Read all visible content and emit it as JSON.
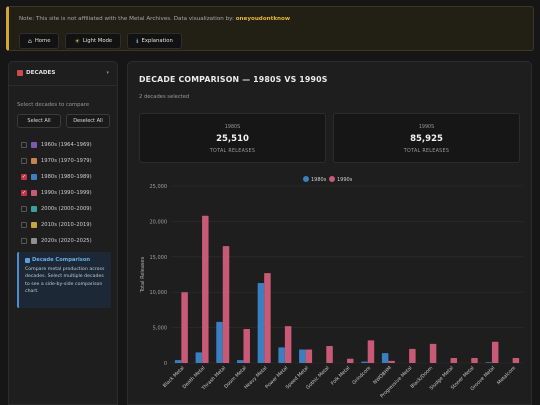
{
  "notice": {
    "text": "Note: This site is not affiliated with the Metal Archives. Data visualization by:",
    "author": "oneyoudontknow"
  },
  "nav": [
    {
      "icon": "home-icon",
      "label": "Home"
    },
    {
      "icon": "sun-icon",
      "label": "Light Mode"
    },
    {
      "icon": "info-icon",
      "label": "Explanation"
    }
  ],
  "sidebar": {
    "title": "DECADES",
    "select_label": "Select decades to compare",
    "select_all": "Select All",
    "deselect_all": "Deselect All",
    "decades": [
      {
        "label": "1960s (1964–1969)",
        "checked": false,
        "color": "#7a5ab0"
      },
      {
        "label": "1970s (1970–1979)",
        "checked": false,
        "color": "#c4844a"
      },
      {
        "label": "1980s (1980–1989)",
        "checked": true,
        "color": "#3a7fc0"
      },
      {
        "label": "1990s (1990–1999)",
        "checked": true,
        "color": "#c85a78"
      },
      {
        "label": "2000s (2000–2009)",
        "checked": false,
        "color": "#3aa0a0"
      },
      {
        "label": "2010s (2010–2019)",
        "checked": false,
        "color": "#c8a43a"
      },
      {
        "label": "2020s (2020–2025)",
        "checked": false,
        "color": "#909090"
      }
    ],
    "info_title": "Decade Comparison",
    "info_body": "Compare metal production across decades. Select multiple decades to see a side-by-side comparison chart."
  },
  "main": {
    "title": "DECADE COMPARISON — 1980S VS 1990S",
    "subtitle": "2 decades selected",
    "stats": [
      {
        "label": "1980S",
        "value": "25,510",
        "sub": "TOTAL RELEASES"
      },
      {
        "label": "1990S",
        "value": "85,925",
        "sub": "TOTAL RELEASES"
      }
    ]
  },
  "chart_data": {
    "type": "bar",
    "ylabel": "Total Releases",
    "ylim": [
      0,
      25000
    ],
    "yticks": [
      "0",
      "5,000",
      "10,000",
      "15,000",
      "20,000",
      "25,000"
    ],
    "categories": [
      "Black Metal",
      "Death Metal",
      "Thrash Metal",
      "Doom Metal",
      "Heavy Metal",
      "Power Metal",
      "Speed Metal",
      "Gothic Metal",
      "Folk Metal",
      "Grindcore",
      "NWOBHM",
      "Progressive Metal",
      "Black/Doom",
      "Sludge Metal",
      "Stoner Metal",
      "Groove Metal",
      "Metalcore"
    ],
    "series": [
      {
        "name": "1980s",
        "color": "#3a7fc0",
        "values": [
          400,
          1500,
          5800,
          400,
          11300,
          2200,
          1900,
          0,
          0,
          200,
          1400,
          0,
          0,
          0,
          0,
          100,
          0
        ]
      },
      {
        "name": "1990s",
        "color": "#c85a78",
        "values": [
          10000,
          20800,
          16500,
          4800,
          12700,
          5200,
          1900,
          2400,
          600,
          3200,
          300,
          2000,
          2700,
          700,
          700,
          3000,
          700
        ]
      }
    ],
    "legend": "top-center",
    "grid": true
  }
}
